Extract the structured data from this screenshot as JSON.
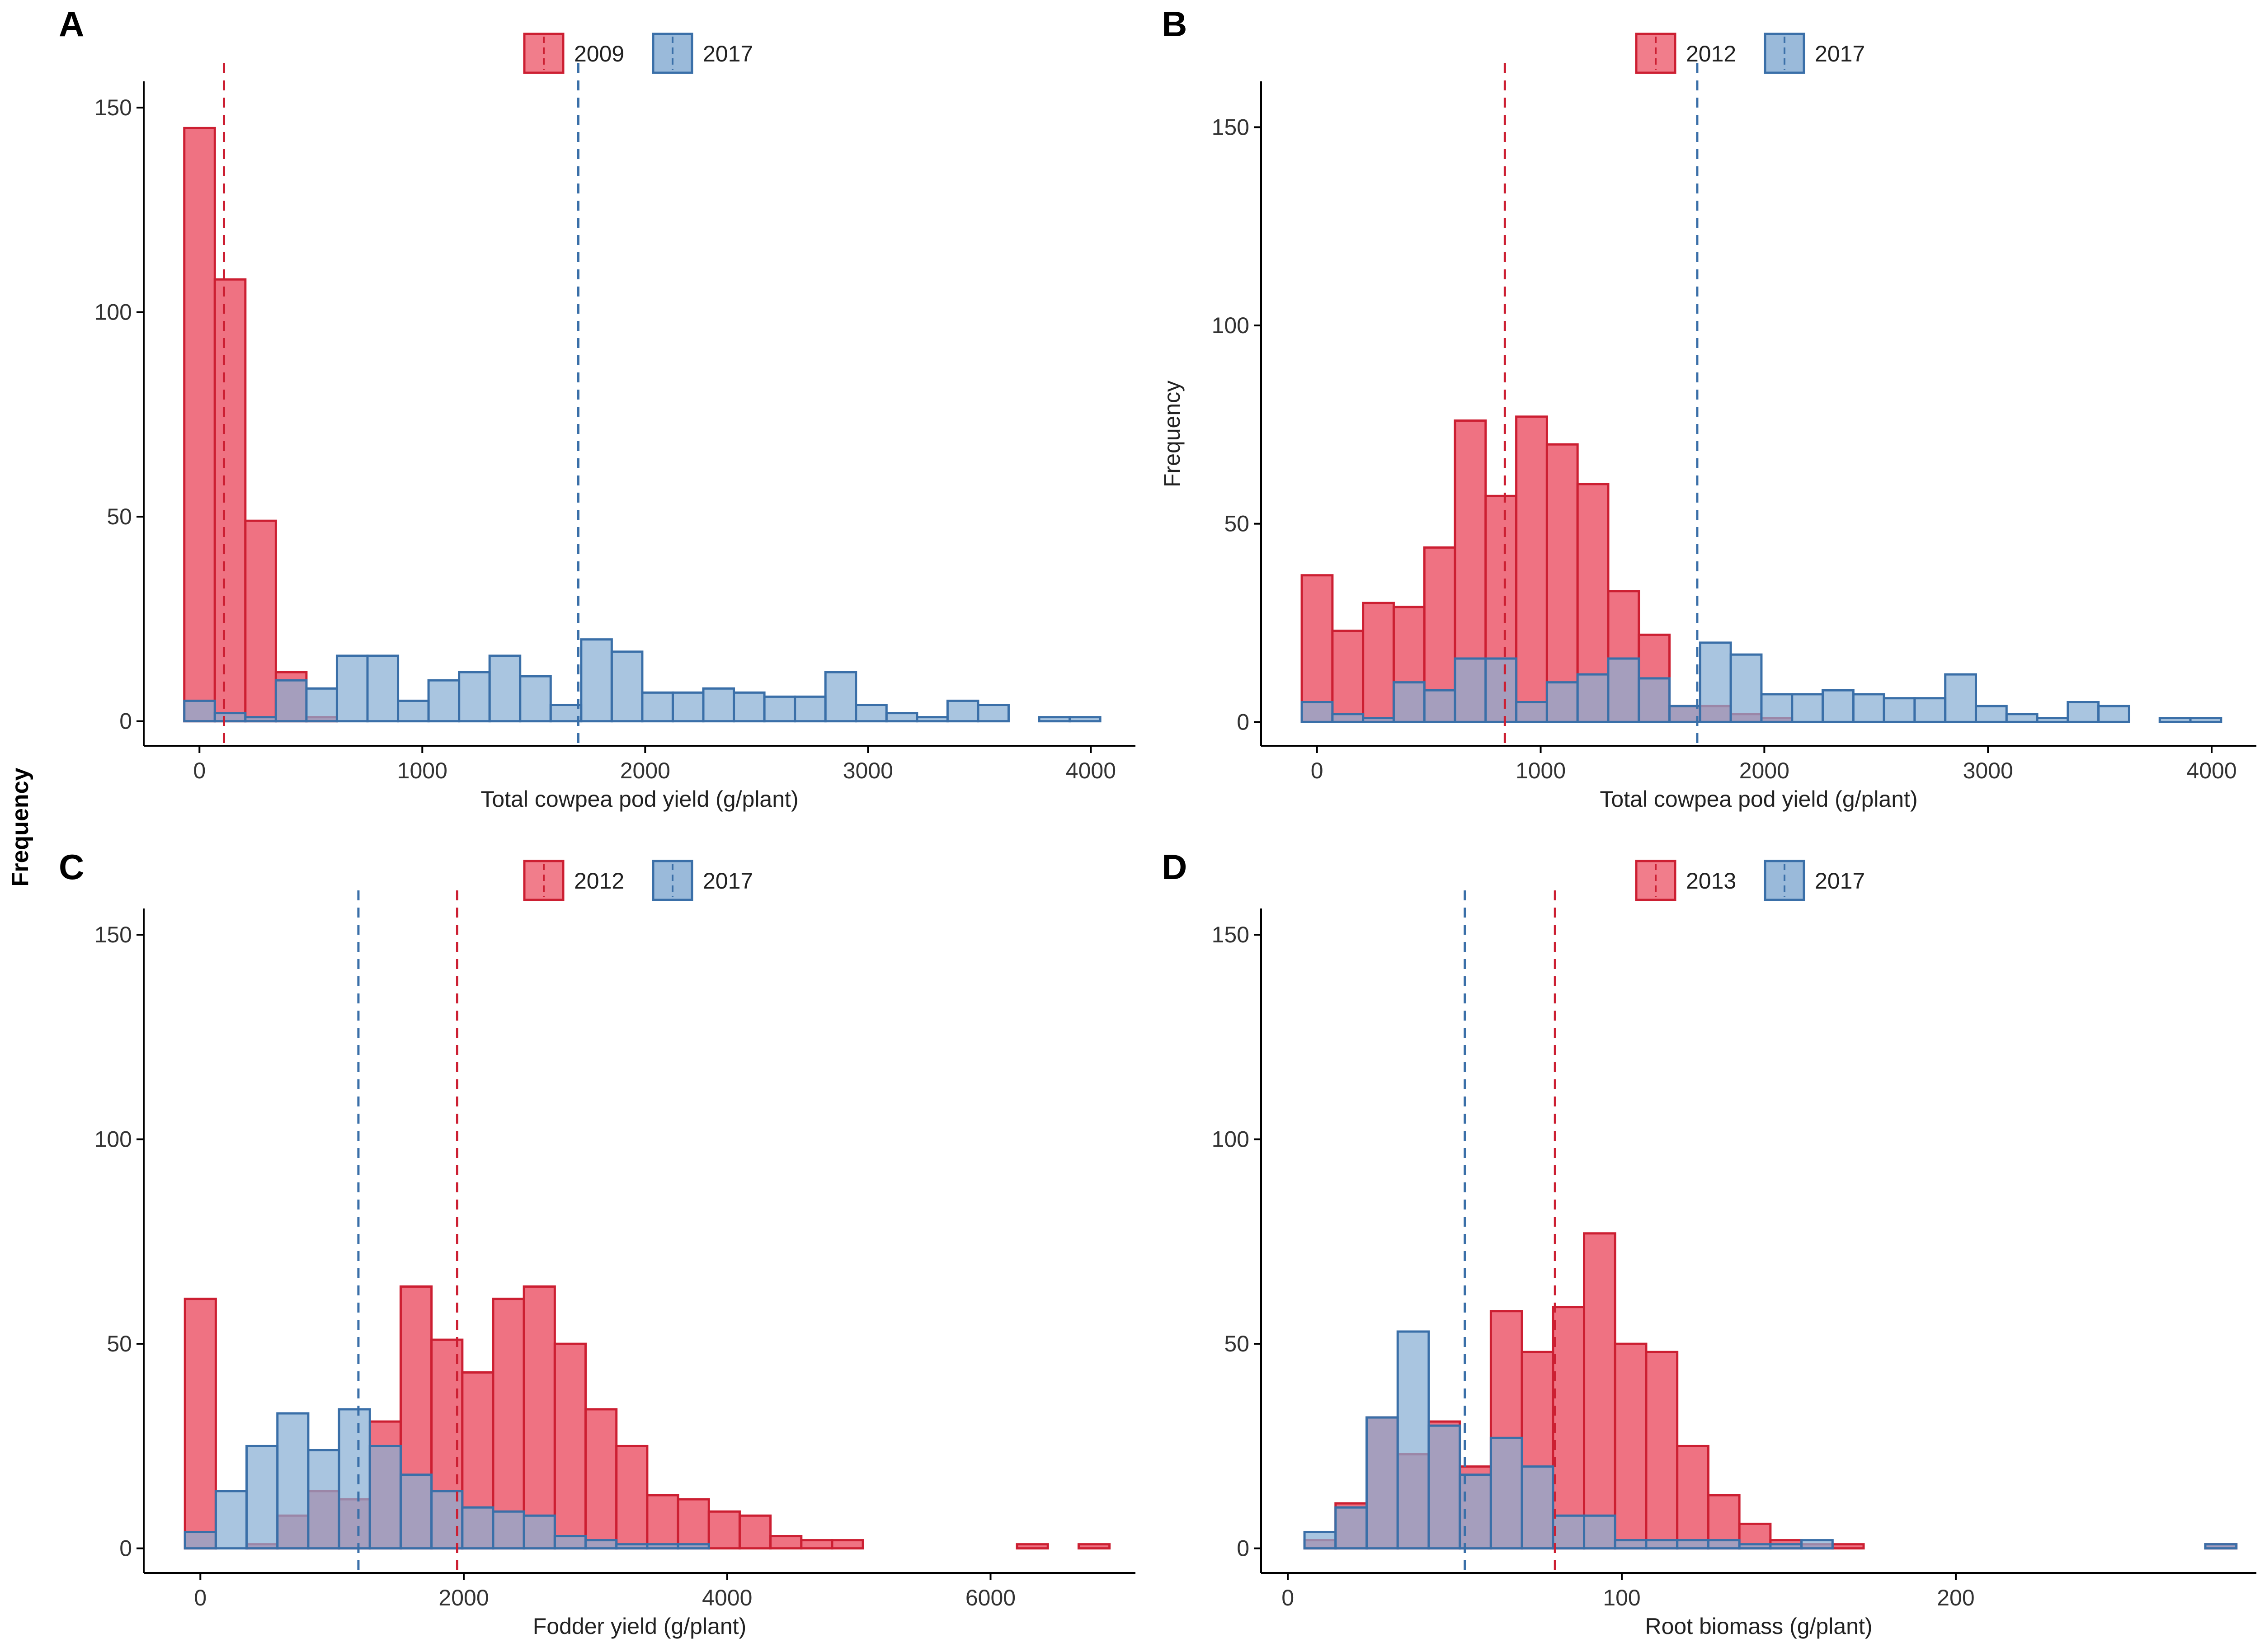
{
  "figure": {
    "shared_ylabel": "Frequency"
  },
  "colors": {
    "red_fill": "#EE6677",
    "red_line": "#CC1F32",
    "blue_fill": "#88AED4",
    "blue_line": "#3A6FA8"
  },
  "chart_data": [
    {
      "type": "histogram",
      "panel": "A",
      "title": "",
      "xlabel": "Total cowpea pod yield (g/plant)",
      "ylabel": "",
      "xlim": [
        -250,
        4200
      ],
      "ylim": [
        -6,
        152
      ],
      "xticks": [
        0,
        1000,
        2000,
        3000,
        4000
      ],
      "yticks": [
        0,
        50,
        100,
        150
      ],
      "bin_width": 137,
      "bin_start": -68,
      "legend": [
        "2009",
        "2017"
      ],
      "series": [
        {
          "name": "2009",
          "color": "red",
          "mean": 110,
          "values": [
            145,
            108,
            49,
            12,
            1,
            0,
            0,
            0,
            0,
            0,
            0,
            0,
            0,
            0,
            0,
            0,
            0,
            0,
            0,
            0,
            0,
            0,
            0,
            0,
            0,
            0,
            0,
            0,
            0,
            0
          ]
        },
        {
          "name": "2017",
          "color": "blue",
          "mean": 1700,
          "values": [
            5,
            2,
            1,
            10,
            8,
            16,
            16,
            5,
            10,
            12,
            16,
            11,
            4,
            20,
            17,
            7,
            7,
            8,
            7,
            6,
            6,
            12,
            4,
            2,
            1,
            5,
            4,
            0,
            1,
            1
          ]
        }
      ]
    },
    {
      "type": "histogram",
      "panel": "B",
      "title": "",
      "xlabel": "Total cowpea pod yield (g/plant)",
      "ylabel": "Frequency",
      "xlim": [
        -250,
        4200
      ],
      "ylim": [
        -6,
        157
      ],
      "xticks": [
        0,
        1000,
        2000,
        3000,
        4000
      ],
      "yticks": [
        0,
        50,
        100,
        150
      ],
      "bin_width": 137,
      "bin_start": -68,
      "legend": [
        "2012",
        "2017"
      ],
      "series": [
        {
          "name": "2012",
          "color": "red",
          "mean": 840,
          "values": [
            37,
            23,
            30,
            29,
            44,
            76,
            57,
            77,
            70,
            60,
            33,
            22,
            4,
            4,
            2,
            1,
            0,
            0,
            0,
            0,
            0,
            0,
            0,
            0,
            0,
            0,
            0,
            0,
            0,
            0
          ]
        },
        {
          "name": "2017",
          "color": "blue",
          "mean": 1700,
          "values": [
            5,
            2,
            1,
            10,
            8,
            16,
            16,
            5,
            10,
            12,
            16,
            11,
            4,
            20,
            17,
            7,
            7,
            8,
            7,
            6,
            6,
            12,
            4,
            2,
            1,
            5,
            4,
            0,
            1,
            1
          ]
        }
      ]
    },
    {
      "type": "histogram",
      "panel": "C",
      "title": "",
      "xlabel": "Fodder yield (g/plant)",
      "ylabel": "",
      "xlim": [
        -430,
        7100
      ],
      "ylim": [
        -6,
        152
      ],
      "xticks": [
        0,
        2000,
        4000,
        6000
      ],
      "yticks": [
        0,
        50,
        100,
        150
      ],
      "bin_width": 234,
      "bin_start": -117,
      "legend": [
        "2012",
        "2017"
      ],
      "series": [
        {
          "name": "2012",
          "color": "red",
          "mean": 1950,
          "values": [
            61,
            0,
            1,
            8,
            14,
            12,
            31,
            64,
            51,
            43,
            61,
            64,
            50,
            34,
            25,
            13,
            12,
            9,
            8,
            3,
            2,
            2,
            0,
            0,
            0,
            0,
            0,
            1,
            0,
            1
          ]
        },
        {
          "name": "2017",
          "color": "blue",
          "mean": 1200,
          "values": [
            4,
            14,
            25,
            33,
            24,
            34,
            25,
            18,
            14,
            10,
            9,
            8,
            3,
            2,
            1,
            1,
            1,
            0,
            0,
            0,
            0,
            0,
            0,
            0,
            0,
            0,
            0,
            0,
            0,
            0
          ]
        }
      ]
    },
    {
      "type": "histogram",
      "panel": "D",
      "title": "",
      "xlabel": "Root biomass (g/plant)",
      "ylabel": "",
      "xlim": [
        -8,
        290
      ],
      "ylim": [
        -6,
        152
      ],
      "xticks": [
        0,
        100,
        200
      ],
      "yticks": [
        0,
        50,
        100,
        150
      ],
      "bin_width": 9.3,
      "bin_start": 5,
      "legend": [
        "2013",
        "2017"
      ],
      "series": [
        {
          "name": "2013",
          "color": "red",
          "mean": 80,
          "values": [
            2,
            11,
            32,
            23,
            31,
            20,
            58,
            48,
            59,
            77,
            50,
            48,
            25,
            13,
            6,
            2,
            1,
            1,
            0,
            0,
            0,
            0,
            0,
            0,
            0,
            0,
            0,
            0,
            0,
            1
          ]
        },
        {
          "name": "2017",
          "color": "blue",
          "mean": 53,
          "values": [
            4,
            10,
            32,
            53,
            30,
            18,
            27,
            20,
            8,
            8,
            2,
            2,
            2,
            2,
            1,
            1,
            2,
            0,
            0,
            0,
            0,
            0,
            0,
            0,
            0,
            0,
            0,
            0,
            0,
            1
          ]
        }
      ]
    }
  ]
}
